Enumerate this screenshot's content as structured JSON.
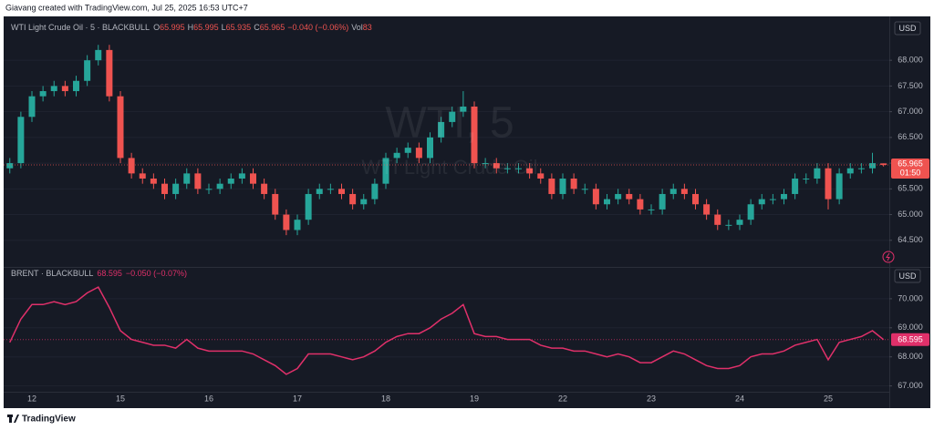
{
  "header": {
    "credit": "Giavang created with TradingView.com, Jul 25, 2025 16:53 UTC+7",
    "footer": "TradingView"
  },
  "chart_data": [
    {
      "type": "candlestick",
      "symbol": "WTI Light Crude Oil · 5 · BLACKBULL",
      "watermark": "WTI, 5",
      "watermark_subtitle": "WTI Light Crude Oil",
      "ohlc_labels": [
        "O",
        "H",
        "L",
        "C"
      ],
      "change": "−0.040 (−0.06%)",
      "volume_label": "Vol",
      "volume": 83,
      "currency": "USD",
      "countdown": "01:50",
      "up_color": "#26a69a",
      "down_color": "#ef5350",
      "categories": [
        null,
        null,
        "12",
        null,
        null,
        null,
        null,
        null,
        null,
        null,
        "15",
        null,
        null,
        null,
        null,
        null,
        null,
        null,
        "16",
        null,
        null,
        null,
        null,
        null,
        null,
        null,
        "17",
        null,
        null,
        null,
        null,
        null,
        null,
        null,
        "18",
        null,
        null,
        null,
        null,
        null,
        null,
        null,
        "19",
        null,
        null,
        null,
        null,
        null,
        null,
        null,
        "22",
        null,
        null,
        null,
        null,
        null,
        null,
        null,
        "23",
        null,
        null,
        null,
        null,
        null,
        null,
        null,
        "24",
        null,
        null,
        null,
        null,
        null,
        null,
        null,
        "25",
        null,
        null,
        null,
        null,
        null
      ],
      "open": [
        65.9,
        66.0,
        66.9,
        67.3,
        67.4,
        67.5,
        67.4,
        67.6,
        68.0,
        68.2,
        67.3,
        66.1,
        65.8,
        65.7,
        65.6,
        65.4,
        65.6,
        65.8,
        65.5,
        65.5,
        65.6,
        65.7,
        65.8,
        65.6,
        65.4,
        65.0,
        64.7,
        64.9,
        65.4,
        65.5,
        65.5,
        65.4,
        65.2,
        65.3,
        65.6,
        66.1,
        66.2,
        66.3,
        66.1,
        66.5,
        66.8,
        67.0,
        67.1,
        66.0,
        66.0,
        65.9,
        65.9,
        65.9,
        65.8,
        65.7,
        65.4,
        65.7,
        65.5,
        65.5,
        65.2,
        65.3,
        65.4,
        65.3,
        65.1,
        65.1,
        65.4,
        65.5,
        65.4,
        65.2,
        65.0,
        64.8,
        64.8,
        64.9,
        65.2,
        65.3,
        65.3,
        65.4,
        65.7,
        65.7,
        65.9,
        65.3,
        65.8,
        65.9,
        65.9,
        65.995
      ],
      "high": [
        66.1,
        67.0,
        67.4,
        67.5,
        67.6,
        67.6,
        67.7,
        68.1,
        68.3,
        68.3,
        67.4,
        66.2,
        65.9,
        65.8,
        65.7,
        65.7,
        65.9,
        65.9,
        65.6,
        65.7,
        65.8,
        65.9,
        65.9,
        65.7,
        65.5,
        65.1,
        65.0,
        65.5,
        65.6,
        65.6,
        65.6,
        65.5,
        65.4,
        65.7,
        66.2,
        66.3,
        66.4,
        66.4,
        66.6,
        66.9,
        67.1,
        67.4,
        67.2,
        66.1,
        66.1,
        66.0,
        66.0,
        66.0,
        65.9,
        65.8,
        65.8,
        65.8,
        65.6,
        65.6,
        65.4,
        65.5,
        65.5,
        65.4,
        65.2,
        65.5,
        65.6,
        65.6,
        65.5,
        65.3,
        65.1,
        64.9,
        65.0,
        65.3,
        65.4,
        65.4,
        65.5,
        65.8,
        65.8,
        66.0,
        66.0,
        65.9,
        66.0,
        66.0,
        66.2,
        65.995
      ],
      "low": [
        65.8,
        65.9,
        66.8,
        67.2,
        67.3,
        67.3,
        67.3,
        67.5,
        67.9,
        67.2,
        66.0,
        65.7,
        65.6,
        65.5,
        65.3,
        65.3,
        65.5,
        65.4,
        65.4,
        65.4,
        65.5,
        65.6,
        65.5,
        65.3,
        64.9,
        64.6,
        64.6,
        64.8,
        65.3,
        65.4,
        65.3,
        65.1,
        65.1,
        65.2,
        65.5,
        66.0,
        66.1,
        66.0,
        66.0,
        66.4,
        66.7,
        66.9,
        65.9,
        65.9,
        65.8,
        65.8,
        65.8,
        65.7,
        65.6,
        65.3,
        65.3,
        65.4,
        65.4,
        65.1,
        65.1,
        65.2,
        65.2,
        65.0,
        65.0,
        65.0,
        65.3,
        65.3,
        65.1,
        64.9,
        64.7,
        64.7,
        64.7,
        64.8,
        65.1,
        65.2,
        65.2,
        65.3,
        65.6,
        65.6,
        65.1,
        65.2,
        65.7,
        65.8,
        65.8,
        65.935
      ],
      "close": [
        66.0,
        66.9,
        67.3,
        67.4,
        67.5,
        67.4,
        67.6,
        68.0,
        68.2,
        67.3,
        66.1,
        65.8,
        65.7,
        65.6,
        65.4,
        65.6,
        65.8,
        65.5,
        65.5,
        65.6,
        65.7,
        65.8,
        65.6,
        65.4,
        65.0,
        64.7,
        64.9,
        65.4,
        65.5,
        65.5,
        65.4,
        65.2,
        65.3,
        65.6,
        66.1,
        66.2,
        66.3,
        66.1,
        66.5,
        66.8,
        67.0,
        67.1,
        66.0,
        66.0,
        65.9,
        65.9,
        65.9,
        65.8,
        65.7,
        65.4,
        65.7,
        65.5,
        65.5,
        65.2,
        65.3,
        65.4,
        65.3,
        65.1,
        65.1,
        65.4,
        65.5,
        65.4,
        65.2,
        65.0,
        64.8,
        64.8,
        64.9,
        65.2,
        65.3,
        65.3,
        65.4,
        65.7,
        65.7,
        65.9,
        65.3,
        65.8,
        65.9,
        65.9,
        66.0,
        65.965
      ],
      "ylim": [
        64.0,
        68.8
      ],
      "yticks": [
        {
          "value": 64.5,
          "label": "64.500"
        },
        {
          "value": 65,
          "label": "65.000"
        },
        {
          "value": 65.5,
          "label": "65.500"
        },
        {
          "value": 66,
          "label": "66.000"
        },
        {
          "value": 66.5,
          "label": "66.500"
        },
        {
          "value": 67,
          "label": "67.000"
        },
        {
          "value": 67.5,
          "label": "67.500"
        },
        {
          "value": 68,
          "label": "68.000"
        }
      ],
      "grid": true
    },
    {
      "type": "line",
      "symbol": "BRENT · BLACKBULL",
      "change": "−0.050 (−0.07%)",
      "currency": "USD",
      "color": "#e0306a",
      "values": [
        68.5,
        69.3,
        69.8,
        69.8,
        69.9,
        69.8,
        69.9,
        70.2,
        70.4,
        69.7,
        68.9,
        68.6,
        68.5,
        68.4,
        68.4,
        68.3,
        68.6,
        68.3,
        68.2,
        68.2,
        68.2,
        68.2,
        68.1,
        67.9,
        67.7,
        67.4,
        67.6,
        68.1,
        68.1,
        68.1,
        68.0,
        67.9,
        68.0,
        68.2,
        68.5,
        68.7,
        68.8,
        68.8,
        69.0,
        69.3,
        69.5,
        69.8,
        68.8,
        68.7,
        68.7,
        68.6,
        68.6,
        68.6,
        68.4,
        68.3,
        68.3,
        68.2,
        68.2,
        68.1,
        68.0,
        68.1,
        68.0,
        67.8,
        67.8,
        68.0,
        68.2,
        68.1,
        67.9,
        67.7,
        67.6,
        67.6,
        67.7,
        68.0,
        68.1,
        68.1,
        68.2,
        68.4,
        68.5,
        68.6,
        67.9,
        68.5,
        68.6,
        68.7,
        68.9,
        68.595
      ],
      "ylim": [
        66.8,
        71.0
      ],
      "yticks": [
        {
          "value": 67,
          "label": "67.000"
        },
        {
          "value": 68,
          "label": "68.000"
        },
        {
          "value": 69,
          "label": "69.000"
        },
        {
          "value": 70,
          "label": "70.000"
        }
      ],
      "grid": true
    }
  ]
}
